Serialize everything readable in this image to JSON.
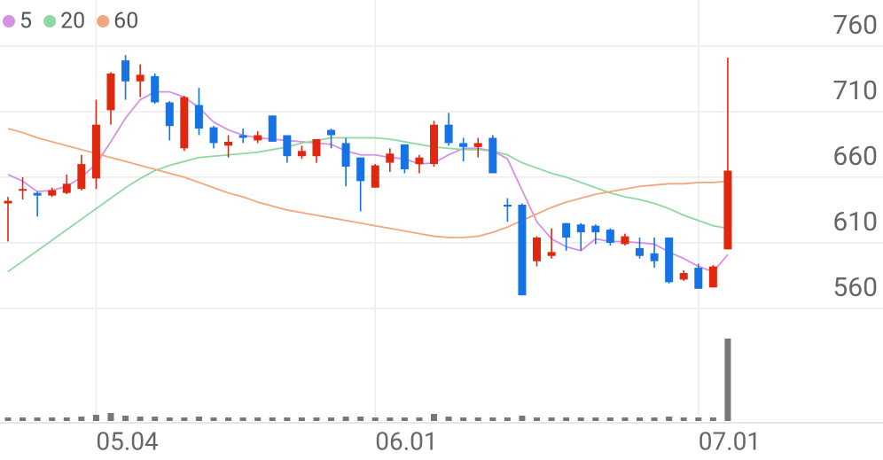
{
  "chart_data": {
    "type": "candlestick",
    "categories": [
      null,
      null,
      null,
      null,
      null,
      null,
      "05.04",
      null,
      null,
      null,
      null,
      null,
      null,
      null,
      null,
      null,
      null,
      null,
      null,
      null,
      null,
      null,
      null,
      null,
      null,
      "06.01",
      null,
      null,
      null,
      null,
      null,
      null,
      null,
      null,
      null,
      null,
      null,
      null,
      null,
      null,
      null,
      null,
      null,
      null,
      null,
      null,
      null,
      "07.01",
      null,
      null
    ],
    "open": [
      640,
      650,
      648,
      646,
      648,
      651,
      659,
      711,
      749,
      733,
      737,
      717,
      682,
      715,
      698,
      684,
      692,
      688,
      707,
      692,
      676,
      676,
      696,
      686,
      675,
      652,
      671,
      685,
      670,
      670,
      700,
      686,
      683,
      690,
      639,
      639,
      596,
      600,
      625,
      624,
      623,
      620,
      609,
      606,
      602,
      614,
      582,
      591,
      576,
      605
    ],
    "high": [
      645,
      660,
      649,
      652,
      662,
      677,
      719,
      740,
      753,
      746,
      739,
      718,
      722,
      728,
      699,
      692,
      697,
      695,
      707,
      692,
      684,
      689,
      697,
      690,
      675,
      670,
      682,
      685,
      677,
      703,
      709,
      690,
      690,
      692,
      644,
      640,
      615,
      621,
      625,
      625,
      624,
      621,
      617,
      614,
      614,
      614,
      589,
      594,
      593,
      751
    ],
    "low": [
      611,
      643,
      630,
      645,
      647,
      650,
      651,
      700,
      719,
      721,
      716,
      688,
      680,
      692,
      682,
      675,
      686,
      686,
      687,
      671,
      674,
      671,
      682,
      653,
      634,
      652,
      664,
      663,
      663,
      668,
      684,
      672,
      675,
      663,
      626,
      570,
      592,
      598,
      604,
      604,
      609,
      608,
      608,
      598,
      591,
      579,
      581,
      575,
      576,
      605
    ],
    "close": [
      642,
      651,
      646,
      650,
      655,
      670,
      700,
      739,
      733,
      738,
      717,
      699,
      721,
      697,
      686,
      687,
      690,
      692,
      687,
      676,
      680,
      689,
      692,
      668,
      657,
      669,
      678,
      666,
      675,
      700,
      686,
      683,
      686,
      663,
      638,
      570,
      614,
      603,
      614,
      618,
      618,
      610,
      615,
      600,
      596,
      580,
      587,
      575,
      592,
      665
    ],
    "volume": [
      4,
      4,
      4,
      4,
      4,
      5,
      7,
      9,
      6,
      5,
      5,
      4,
      4,
      5,
      4,
      4,
      4,
      4,
      4,
      4,
      4,
      4,
      4,
      5,
      5,
      4,
      4,
      4,
      4,
      8,
      5,
      4,
      4,
      4,
      4,
      6,
      4,
      4,
      4,
      4,
      4,
      4,
      4,
      4,
      4,
      5,
      4,
      4,
      4,
      93
    ],
    "series": [
      {
        "name": "5",
        "color": "#d591e6",
        "values": [
          662,
          657,
          649,
          650,
          653,
          660,
          670,
          687,
          705,
          719,
          725,
          725,
          721,
          713,
          702,
          696,
          692,
          690,
          689,
          688,
          687,
          686,
          685,
          680,
          677,
          677,
          675,
          674,
          670,
          671,
          677,
          682,
          682,
          680,
          674,
          650,
          626,
          613,
          607,
          604,
          613,
          611,
          611,
          610,
          609,
          603,
          598,
          592,
          588,
          601
        ]
      },
      {
        "name": "20",
        "color": "#8fd8a4",
        "values": [
          588,
          596,
          604,
          612,
          620,
          628,
          636,
          644,
          652,
          659,
          665,
          669,
          672,
          675,
          676,
          677,
          678,
          679,
          681,
          683,
          686,
          688,
          690,
          690,
          690,
          690,
          689,
          687,
          685,
          683,
          682,
          681,
          681,
          680,
          677,
          671,
          667,
          663,
          660,
          656,
          652,
          648,
          645,
          643,
          640,
          636,
          631,
          627,
          623,
          621
        ]
      },
      {
        "name": "60",
        "color": "#f0a77e",
        "values": [
          697,
          694,
          690,
          687,
          684,
          681,
          678,
          675,
          672,
          669,
          666,
          663,
          660,
          656,
          652,
          648,
          645,
          641,
          638,
          635,
          633,
          631,
          629,
          627,
          625,
          623,
          621,
          619,
          617,
          615,
          614,
          614,
          615,
          618,
          622,
          627,
          632,
          637,
          641,
          644,
          647,
          649,
          651,
          653,
          654,
          655,
          655,
          656,
          656,
          657
        ]
      }
    ],
    "ylim": [
      560,
      795
    ],
    "yticks": [
      560,
      610,
      660,
      710,
      760
    ],
    "up_color": "#e0280e",
    "down_color": "#1573e6",
    "volume_color": "#777777",
    "grid": true
  }
}
